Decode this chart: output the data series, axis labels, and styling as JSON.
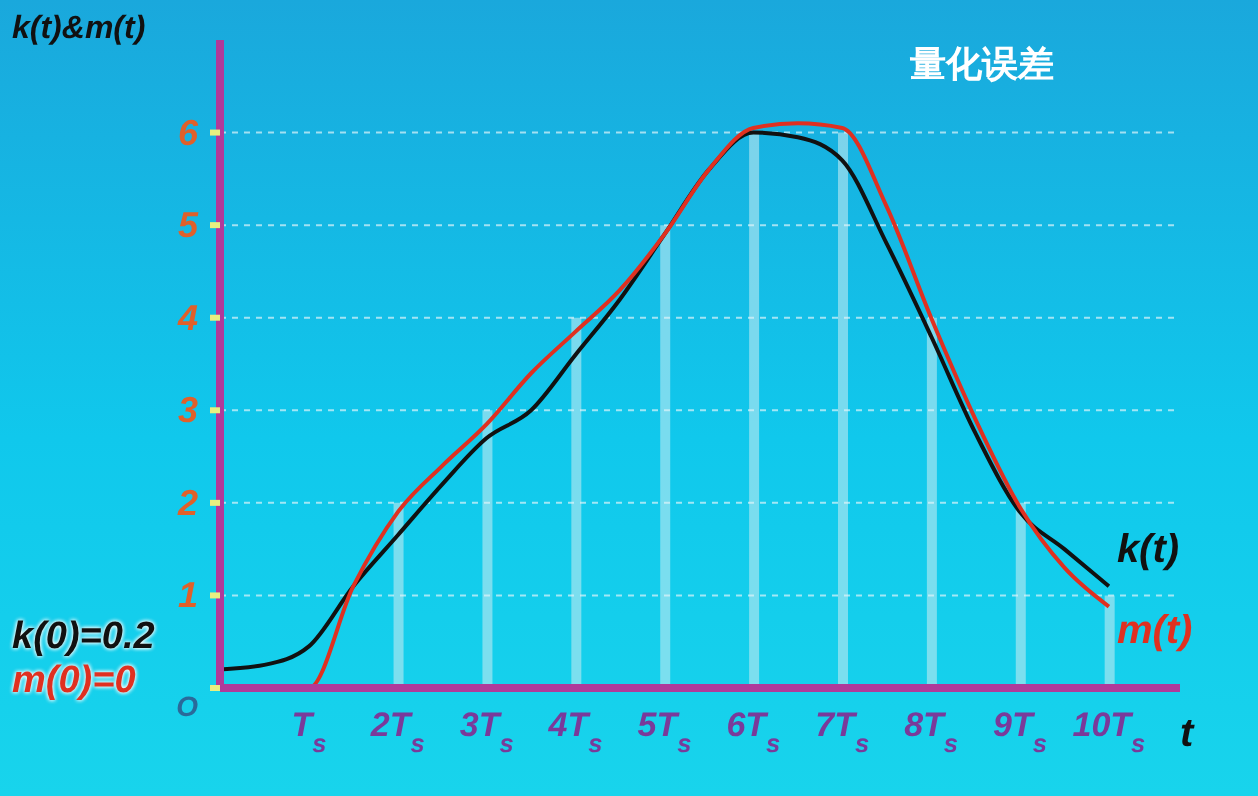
{
  "chart_data": {
    "type": "line",
    "title": "量化误差",
    "xlabel": "t",
    "ylabel": "k(t)&m(t)",
    "x": [
      0,
      0.5,
      1,
      1.5,
      2,
      2.5,
      3,
      3.5,
      4,
      4.5,
      5,
      5.5,
      6,
      6.5,
      7,
      7.5,
      8,
      8.5,
      9,
      9.5,
      10
    ],
    "series": [
      {
        "name": "k(t)",
        "color": "#111111",
        "values": [
          0.2,
          0.25,
          0.45,
          1.1,
          1.65,
          2.2,
          2.7,
          3.0,
          3.6,
          4.2,
          4.9,
          5.6,
          6.0,
          5.95,
          5.7,
          4.8,
          3.8,
          2.75,
          1.9,
          1.5,
          1.1
        ]
      },
      {
        "name": "m(t)",
        "color": "#e03020",
        "values": [
          0,
          0,
          0,
          1.1,
          1.9,
          2.4,
          2.85,
          3.4,
          3.85,
          4.3,
          4.9,
          5.6,
          6.05,
          6.1,
          6.05,
          5.2,
          4.0,
          2.9,
          1.95,
          1.3,
          0.88
        ]
      },
      {
        "type": "bar",
        "color": "#bfe9f2",
        "x": [
          1,
          2,
          3,
          4,
          5,
          6,
          7,
          8,
          9,
          10
        ],
        "values": [
          0,
          2,
          3,
          4,
          5,
          6,
          6,
          4,
          2,
          1
        ]
      }
    ],
    "xlim": [
      0,
      10.8
    ],
    "xticks": [
      {
        "value": 1,
        "label": "T$_{s}$"
      },
      {
        "value": 2,
        "label": "2T$_{s}$"
      },
      {
        "value": 3,
        "label": "3T$_{s}$"
      },
      {
        "value": 4,
        "label": "4T$_{s}$"
      },
      {
        "value": 5,
        "label": "5T$_{s}$"
      },
      {
        "value": 6,
        "label": "6T$_{s}$"
      },
      {
        "value": 7,
        "label": "7T$_{s}$"
      },
      {
        "value": 8,
        "label": "8T$_{s}$"
      },
      {
        "value": 9,
        "label": "9T$_{s}$"
      },
      {
        "value": 10,
        "label": "10T$_{s}$"
      }
    ],
    "ylim": [
      0,
      7
    ],
    "yticks": [
      {
        "value": 0,
        "label": "O"
      },
      1,
      2,
      3,
      4,
      5,
      6
    ],
    "grid": "y",
    "annotations": [
      "k(0)=0.2",
      "m(0)=0"
    ]
  }
}
